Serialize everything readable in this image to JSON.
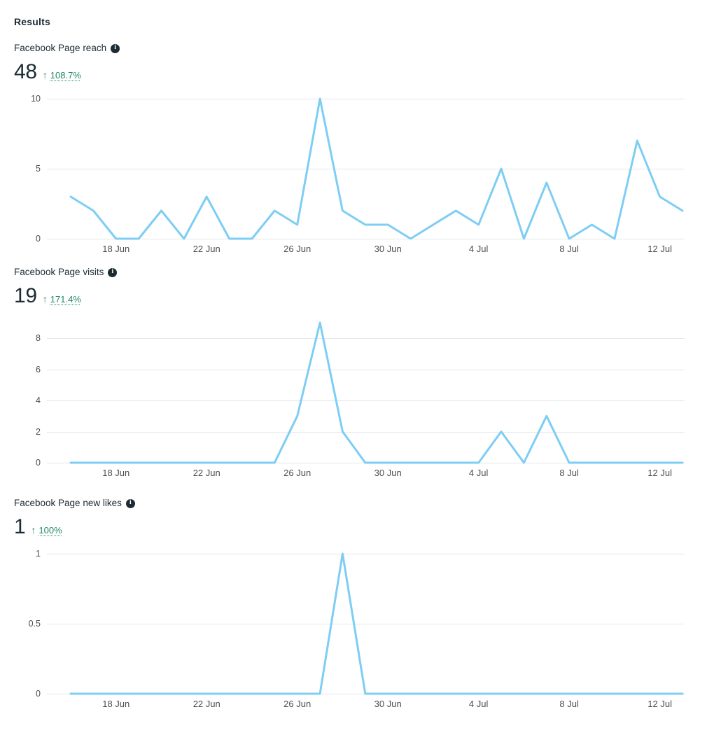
{
  "header": {
    "title": "Results"
  },
  "icons": {
    "info_glyph": "i",
    "up_arrow": "↑"
  },
  "colors": {
    "background": "#ffffff",
    "heading_text": "#1c2b33",
    "positive_green": "#1d8a68",
    "axis_text": "#4b4d52",
    "gridline": "#e4e6ea",
    "chart_line": "#7ecdf4"
  },
  "metrics": [
    {
      "label": "Facebook Page reach",
      "value": "48",
      "trend_arrow": "↑",
      "trend_percent": "108.7%"
    },
    {
      "label": "Facebook Page visits",
      "value": "19",
      "trend_arrow": "↑",
      "trend_percent": "171.4%"
    },
    {
      "label": "Facebook Page new likes",
      "value": "1",
      "trend_arrow": "↑",
      "trend_percent": "100%"
    }
  ],
  "chart_data": [
    {
      "type": "line",
      "name": "facebook-page-reach",
      "title": "Facebook Page reach",
      "x": [
        "16 Jun",
        "17 Jun",
        "18 Jun",
        "19 Jun",
        "20 Jun",
        "21 Jun",
        "22 Jun",
        "23 Jun",
        "24 Jun",
        "25 Jun",
        "26 Jun",
        "27 Jun",
        "28 Jun",
        "29 Jun",
        "30 Jun",
        "1 Jul",
        "2 Jul",
        "3 Jul",
        "4 Jul",
        "5 Jul",
        "6 Jul",
        "7 Jul",
        "8 Jul",
        "9 Jul",
        "10 Jul",
        "11 Jul",
        "12 Jul",
        "13 Jul"
      ],
      "values": [
        3,
        2,
        0,
        0,
        2,
        0,
        3,
        0,
        0,
        2,
        1,
        10,
        2,
        1,
        1,
        0,
        1,
        2,
        1,
        5,
        0,
        4,
        0,
        1,
        0,
        7,
        3,
        2
      ],
      "ylim": [
        0,
        10
      ],
      "yticks": [
        0,
        5,
        10
      ],
      "xticks": [
        {
          "index": 2,
          "label": "18 Jun"
        },
        {
          "index": 6,
          "label": "22 Jun"
        },
        {
          "index": 10,
          "label": "26 Jun"
        },
        {
          "index": 14,
          "label": "30 Jun"
        },
        {
          "index": 18,
          "label": "4 Jul"
        },
        {
          "index": 22,
          "label": "8 Jul"
        },
        {
          "index": 26,
          "label": "12 Jul"
        }
      ],
      "grid": true,
      "legend": false
    },
    {
      "type": "line",
      "name": "facebook-page-visits",
      "title": "Facebook Page visits",
      "x": [
        "16 Jun",
        "17 Jun",
        "18 Jun",
        "19 Jun",
        "20 Jun",
        "21 Jun",
        "22 Jun",
        "23 Jun",
        "24 Jun",
        "25 Jun",
        "26 Jun",
        "27 Jun",
        "28 Jun",
        "29 Jun",
        "30 Jun",
        "1 Jul",
        "2 Jul",
        "3 Jul",
        "4 Jul",
        "5 Jul",
        "6 Jul",
        "7 Jul",
        "8 Jul",
        "9 Jul",
        "10 Jul",
        "11 Jul",
        "12 Jul",
        "13 Jul"
      ],
      "values": [
        0,
        0,
        0,
        0,
        0,
        0,
        0,
        0,
        0,
        0,
        3,
        9,
        2,
        0,
        0,
        0,
        0,
        0,
        0,
        2,
        0,
        3,
        0,
        0,
        0,
        0,
        0,
        0
      ],
      "ylim": [
        0,
        9
      ],
      "yticks": [
        0,
        2,
        4,
        6,
        8
      ],
      "xticks": [
        {
          "index": 2,
          "label": "18 Jun"
        },
        {
          "index": 6,
          "label": "22 Jun"
        },
        {
          "index": 10,
          "label": "26 Jun"
        },
        {
          "index": 14,
          "label": "30 Jun"
        },
        {
          "index": 18,
          "label": "4 Jul"
        },
        {
          "index": 22,
          "label": "8 Jul"
        },
        {
          "index": 26,
          "label": "12 Jul"
        }
      ],
      "grid": true,
      "legend": false
    },
    {
      "type": "line",
      "name": "facebook-page-new-likes",
      "title": "Facebook Page new likes",
      "x": [
        "16 Jun",
        "17 Jun",
        "18 Jun",
        "19 Jun",
        "20 Jun",
        "21 Jun",
        "22 Jun",
        "23 Jun",
        "24 Jun",
        "25 Jun",
        "26 Jun",
        "27 Jun",
        "28 Jun",
        "29 Jun",
        "30 Jun",
        "1 Jul",
        "2 Jul",
        "3 Jul",
        "4 Jul",
        "5 Jul",
        "6 Jul",
        "7 Jul",
        "8 Jul",
        "9 Jul",
        "10 Jul",
        "11 Jul",
        "12 Jul",
        "13 Jul"
      ],
      "values": [
        0,
        0,
        0,
        0,
        0,
        0,
        0,
        0,
        0,
        0,
        0,
        0,
        1,
        0,
        0,
        0,
        0,
        0,
        0,
        0,
        0,
        0,
        0,
        0,
        0,
        0,
        0,
        0
      ],
      "ylim": [
        0,
        1
      ],
      "yticks": [
        0,
        0.5,
        1
      ],
      "xticks": [
        {
          "index": 2,
          "label": "18 Jun"
        },
        {
          "index": 6,
          "label": "22 Jun"
        },
        {
          "index": 10,
          "label": "26 Jun"
        },
        {
          "index": 14,
          "label": "30 Jun"
        },
        {
          "index": 18,
          "label": "4 Jul"
        },
        {
          "index": 22,
          "label": "8 Jul"
        },
        {
          "index": 26,
          "label": "12 Jul"
        }
      ],
      "grid": true,
      "legend": false
    }
  ]
}
